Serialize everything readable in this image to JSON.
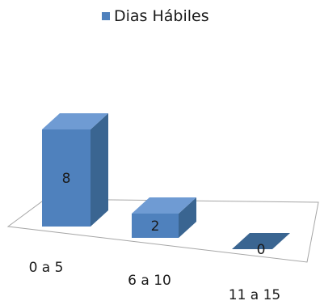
{
  "chart_data": {
    "type": "bar",
    "style": "3d-column",
    "title": "",
    "xlabel": "",
    "ylabel": "",
    "categories": [
      "0 a 5",
      "6 a 10",
      "11 a 15"
    ],
    "series": [
      {
        "name": "Dias Hábiles",
        "values": [
          8,
          2,
          0
        ]
      }
    ],
    "data_labels": [
      "8",
      "2",
      "0"
    ],
    "ylim": [
      0,
      8
    ],
    "grid": false,
    "legend_position": "top",
    "colors": {
      "bar_front": "#4f81bd",
      "bar_side": "#3a6591",
      "bar_top": "#6f9bd3",
      "floor_stroke": "#a6a6a6"
    }
  }
}
